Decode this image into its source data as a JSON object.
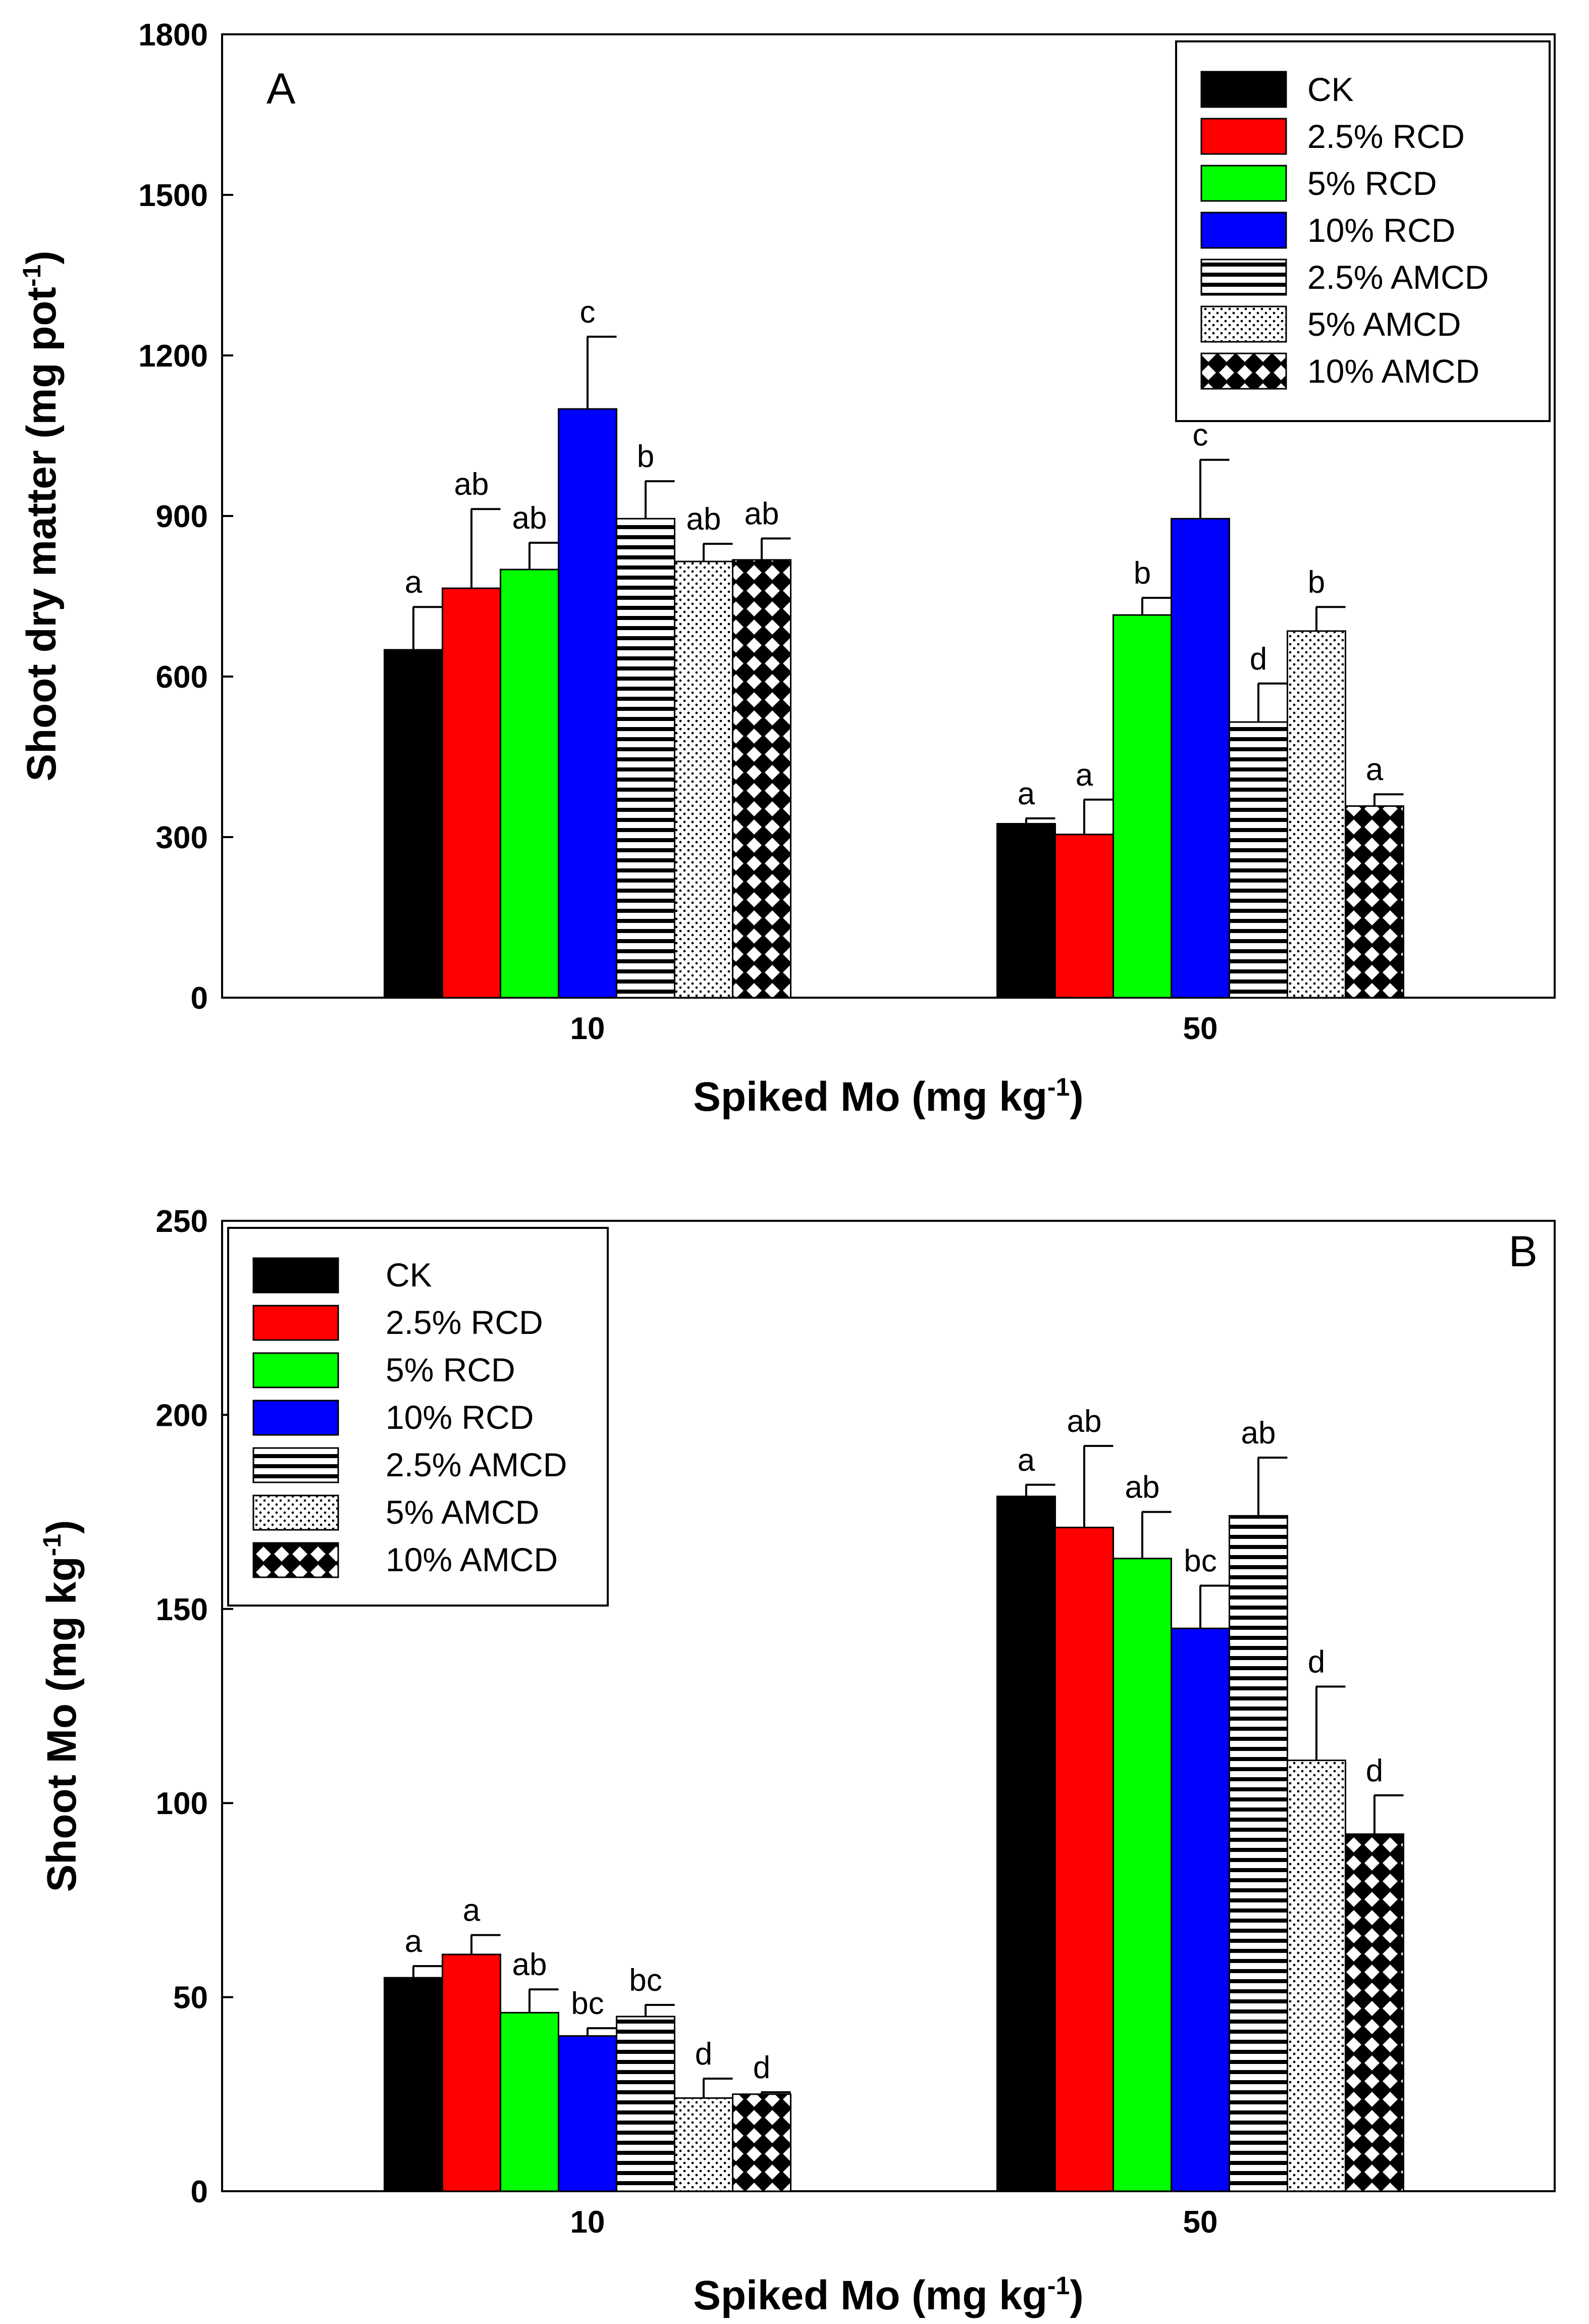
{
  "series_styles": [
    {
      "name": "CK",
      "fill": "#000000",
      "pattern": "solid"
    },
    {
      "name": "2.5% RCD",
      "fill": "#ff0000",
      "pattern": "solid"
    },
    {
      "name": "5% RCD",
      "fill": "#00ff00",
      "pattern": "solid"
    },
    {
      "name": "10% RCD",
      "fill": "#0000ff",
      "pattern": "solid"
    },
    {
      "name": "2.5% AMCD",
      "fill": "#ffffff",
      "pattern": "horizontal-lines"
    },
    {
      "name": "5% AMCD",
      "fill": "#ffffff",
      "pattern": "dots"
    },
    {
      "name": "10% AMCD",
      "fill": "#ffffff",
      "pattern": "diamonds"
    }
  ],
  "chart_data": [
    {
      "type": "bar",
      "panel_label": "A",
      "title": "",
      "xlabel": "Spiked Mo (mg kg",
      "xlabel_sup": "-1",
      "xlabel_end": ")",
      "ylabel": "Shoot dry matter (mg pot",
      "ylabel_sup": "-1",
      "ylabel_end": ")",
      "ylim": [
        0,
        1800
      ],
      "yticks": [
        "0",
        "300",
        "600",
        "900",
        "1200",
        "1500",
        "1800"
      ],
      "categories": [
        "10",
        "50"
      ],
      "legend_position": "top-right",
      "series": [
        {
          "name": "CK",
          "values": [
            650,
            325
          ],
          "errors": [
            80,
            10
          ],
          "labels": [
            "a",
            "a"
          ]
        },
        {
          "name": "2.5% RCD",
          "values": [
            765,
            305
          ],
          "errors": [
            148,
            65
          ],
          "labels": [
            "ab",
            "a"
          ]
        },
        {
          "name": "5% RCD",
          "values": [
            800,
            715
          ],
          "errors": [
            50,
            32
          ],
          "labels": [
            "ab",
            "b"
          ]
        },
        {
          "name": "10% RCD",
          "values": [
            1100,
            895
          ],
          "errors": [
            135,
            110
          ],
          "labels": [
            "c",
            "c"
          ]
        },
        {
          "name": "2.5% AMCD",
          "values": [
            895,
            515
          ],
          "errors": [
            70,
            72
          ],
          "labels": [
            "b",
            "d"
          ]
        },
        {
          "name": "5% AMCD",
          "values": [
            815,
            685
          ],
          "errors": [
            33,
            45
          ],
          "labels": [
            "ab",
            "b"
          ]
        },
        {
          "name": "10% AMCD",
          "values": [
            818,
            358
          ],
          "errors": [
            40,
            22
          ],
          "labels": [
            "ab",
            "a"
          ]
        }
      ]
    },
    {
      "type": "bar",
      "panel_label": "B",
      "title": "",
      "xlabel": "Spiked Mo (mg kg",
      "xlabel_sup": "-1",
      "xlabel_end": ")",
      "ylabel": "Shoot Mo (mg kg",
      "ylabel_sup": "-1",
      "ylabel_end": ")",
      "ylim": [
        0,
        250
      ],
      "yticks": [
        "0",
        "50",
        "100",
        "150",
        "200",
        "250"
      ],
      "categories": [
        "10",
        "50"
      ],
      "legend_position": "top-left",
      "series": [
        {
          "name": "CK",
          "values": [
            55,
            179
          ],
          "errors": [
            3,
            3
          ],
          "labels": [
            "a",
            "a"
          ]
        },
        {
          "name": "2.5% RCD",
          "values": [
            61,
            171
          ],
          "errors": [
            5,
            21
          ],
          "labels": [
            "a",
            "ab"
          ]
        },
        {
          "name": "5% RCD",
          "values": [
            46,
            163
          ],
          "errors": [
            6,
            12
          ],
          "labels": [
            "ab",
            "ab"
          ]
        },
        {
          "name": "10% RCD",
          "values": [
            40,
            145
          ],
          "errors": [
            2,
            11
          ],
          "labels": [
            "bc",
            "bc"
          ]
        },
        {
          "name": "2.5% AMCD",
          "values": [
            45,
            174
          ],
          "errors": [
            3,
            15
          ],
          "labels": [
            "bc",
            "ab"
          ]
        },
        {
          "name": "5% AMCD",
          "values": [
            24,
            111
          ],
          "errors": [
            5,
            19
          ],
          "labels": [
            "d",
            "d"
          ]
        },
        {
          "name": "10% AMCD",
          "values": [
            25,
            92
          ],
          "errors": [
            0.5,
            10
          ],
          "labels": [
            "d",
            "d"
          ]
        }
      ]
    }
  ]
}
